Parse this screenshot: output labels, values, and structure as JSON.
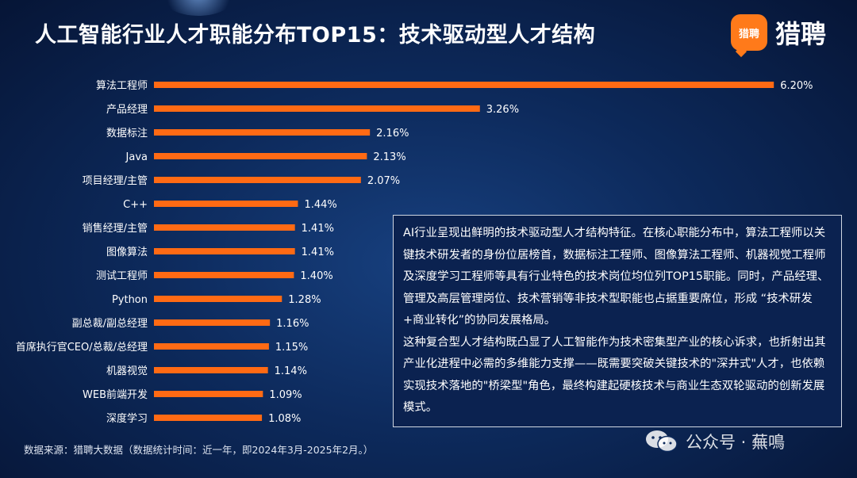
{
  "title": "人工智能行业人才职能分布TOP15：技术驱动型人才结构",
  "logo": {
    "mark": "猎聘",
    "text": "猎聘"
  },
  "chart_data": {
    "type": "bar",
    "orientation": "horizontal",
    "bar_color": "#ff6a14",
    "categories": [
      "算法工程师",
      "产品经理",
      "数据标注",
      "Java",
      "项目经理/主管",
      "C++",
      "销售经理/主管",
      "图像算法",
      "测试工程师",
      "Python",
      "副总裁/副总经理",
      "首席执行官CEO/总裁/总经理",
      "机器视觉",
      "WEB前端开发",
      "深度学习"
    ],
    "values": [
      6.2,
      3.26,
      2.16,
      2.13,
      2.07,
      1.44,
      1.41,
      1.41,
      1.4,
      1.28,
      1.16,
      1.15,
      1.14,
      1.09,
      1.08
    ],
    "value_labels": [
      "6.20%",
      "3.26%",
      "2.16%",
      "2.13%",
      "2.07%",
      "1.44%",
      "1.41%",
      "1.41%",
      "1.40%",
      "1.28%",
      "1.16%",
      "1.15%",
      "1.14%",
      "1.09%",
      "1.08%"
    ],
    "unit": "%",
    "grid": false,
    "legend": "none"
  },
  "description": {
    "para1": "AI行业呈现出鲜明的技术驱动型人才结构特征。在核心职能分布中，算法工程师以关键技术研发者的身份位居榜首，数据标注工程师、图像算法工程师、机器视觉工程师及深度学习工程师等具有行业特色的技术岗位均位列TOP15职能。同时，产品经理、管理及高层管理岗位、技术营销等非技术型职能也占据重要席位，形成 “技术研发+商业转化”的协同发展格局。",
    "para2": "这种复合型人才结构既凸显了人工智能作为技术密集型产业的核心诉求，也折射出其产业化进程中必需的多维能力支撑——既需要突破关键技术的\"深井式\"人才，也依赖实现技术落地的\"桥梁型\"角色，最终构建起硬核技术与商业生态双轮驱动的创新发展模式。"
  },
  "source": "数据来源：猎聘大数据（数据统计时间：近一年，即2024年3月-2025年2月。）",
  "watermark": "公众号 · 蕪鳴"
}
